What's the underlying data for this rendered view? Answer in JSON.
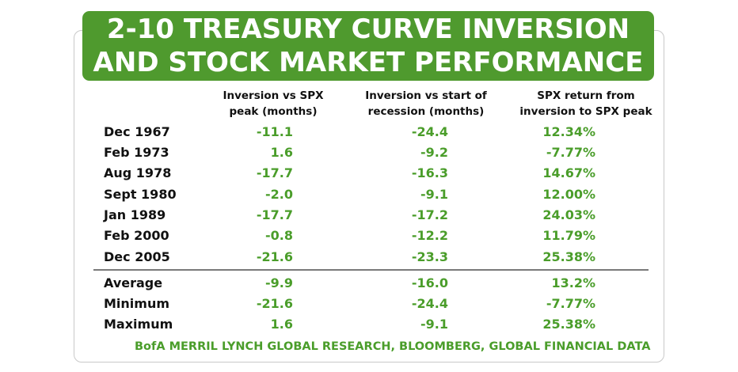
{
  "title": {
    "line1": "2-10 TREASURY CURVE INVERSION",
    "line2": "AND STOCK MARKET PERFORMANCE"
  },
  "headers": [
    {
      "line1": "Inversion vs SPX",
      "line2": "peak (months)"
    },
    {
      "line1": "Inversion vs start of",
      "line2": "recession (months)"
    },
    {
      "line1": "SPX return from",
      "line2": "inversion to SPX peak"
    }
  ],
  "rows": [
    {
      "label": "Dec 1967",
      "v1": "-11.1",
      "v2": "-24.4",
      "v3": "12.34%"
    },
    {
      "label": "Feb 1973",
      "v1": "1.6",
      "v2": "-9.2",
      "v3": "-7.77%"
    },
    {
      "label": "Aug 1978",
      "v1": "-17.7",
      "v2": "-16.3",
      "v3": "14.67%"
    },
    {
      "label": "Sept 1980",
      "v1": "-2.0",
      "v2": "-9.1",
      "v3": "12.00%"
    },
    {
      "label": "Jan 1989",
      "v1": "-17.7",
      "v2": "-17.2",
      "v3": "24.03%"
    },
    {
      "label": "Feb 2000",
      "v1": "-0.8",
      "v2": "-12.2",
      "v3": "11.79%"
    },
    {
      "label": "Dec 2005",
      "v1": "-21.6",
      "v2": "-23.3",
      "v3": "25.38%"
    }
  ],
  "summary": [
    {
      "label": "Average",
      "v1": "-9.9",
      "v2": "-16.0",
      "v3": "13.2%"
    },
    {
      "label": "Minimum",
      "v1": "-21.6",
      "v2": "-24.4",
      "v3": "-7.77%"
    },
    {
      "label": "Maximum",
      "v1": "1.6",
      "v2": "-9.1",
      "v3": "25.38%"
    }
  ],
  "source": "BofA MERRIL LYNCH GLOBAL RESEARCH, BLOOMBERG, GLOBAL FINANCIAL DATA",
  "colors": {
    "title_bg": "#4f9a2e",
    "value_green": "#4a9d2a",
    "label_text": "#111111"
  }
}
